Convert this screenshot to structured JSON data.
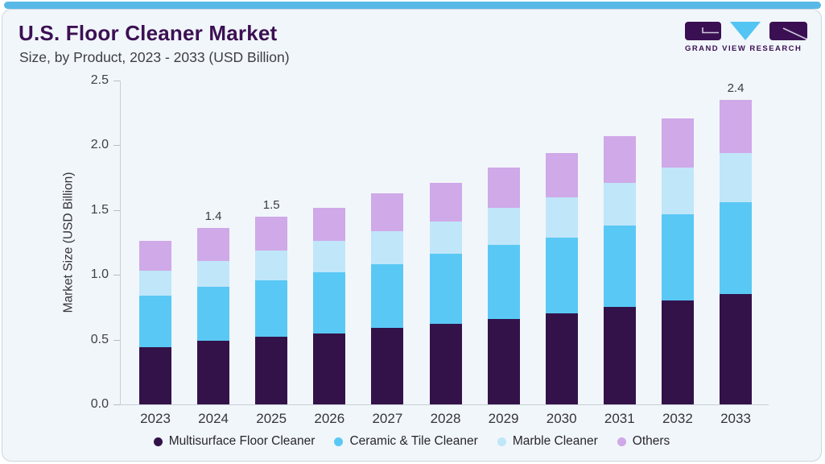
{
  "accent": {
    "top_strip_color": "#58b9e6",
    "card_background": "#f1f6fa",
    "brand_purple": "#3a1053",
    "brand_blue": "#52c5f2"
  },
  "logo": {
    "brand_text": "GRAND VIEW RESEARCH"
  },
  "chart_data": {
    "type": "bar",
    "stacked": true,
    "title": "U.S. Floor Cleaner Market",
    "subtitle": "Size, by Product, 2023 - 2033 (USD Billion)",
    "ylabel": "Market Size (USD Billion)",
    "xlabel": "",
    "ylim": [
      0,
      2.5
    ],
    "yticks": [
      0,
      0.5,
      1,
      1.5,
      2,
      2.5
    ],
    "grid": false,
    "legend_position": "bottom",
    "categories": [
      "2023",
      "2024",
      "2025",
      "2026",
      "2027",
      "2028",
      "2029",
      "2030",
      "2031",
      "2032",
      "2033"
    ],
    "series": [
      {
        "name": "Multisurface Floor Cleaner",
        "color": "#331249",
        "values": [
          0.44,
          0.49,
          0.52,
          0.55,
          0.59,
          0.62,
          0.66,
          0.7,
          0.75,
          0.8,
          0.85
        ]
      },
      {
        "name": "Ceramic & Tile Cleaner",
        "color": "#5ac8f5",
        "values": [
          0.4,
          0.42,
          0.44,
          0.47,
          0.49,
          0.54,
          0.57,
          0.59,
          0.63,
          0.67,
          0.71
        ]
      },
      {
        "name": "Marble Cleaner",
        "color": "#c0e6f9",
        "values": [
          0.19,
          0.2,
          0.23,
          0.24,
          0.26,
          0.25,
          0.29,
          0.31,
          0.33,
          0.36,
          0.38
        ]
      },
      {
        "name": "Others",
        "color": "#cfa9e8",
        "values": [
          0.23,
          0.25,
          0.26,
          0.26,
          0.29,
          0.3,
          0.31,
          0.34,
          0.36,
          0.38,
          0.41
        ]
      }
    ],
    "totals": [
      1.26,
      1.36,
      1.45,
      1.52,
      1.63,
      1.71,
      1.83,
      1.94,
      2.07,
      2.21,
      2.35
    ],
    "bar_labels": {
      "2024": "1.4",
      "2025": "1.5",
      "2033": "2.4"
    }
  }
}
